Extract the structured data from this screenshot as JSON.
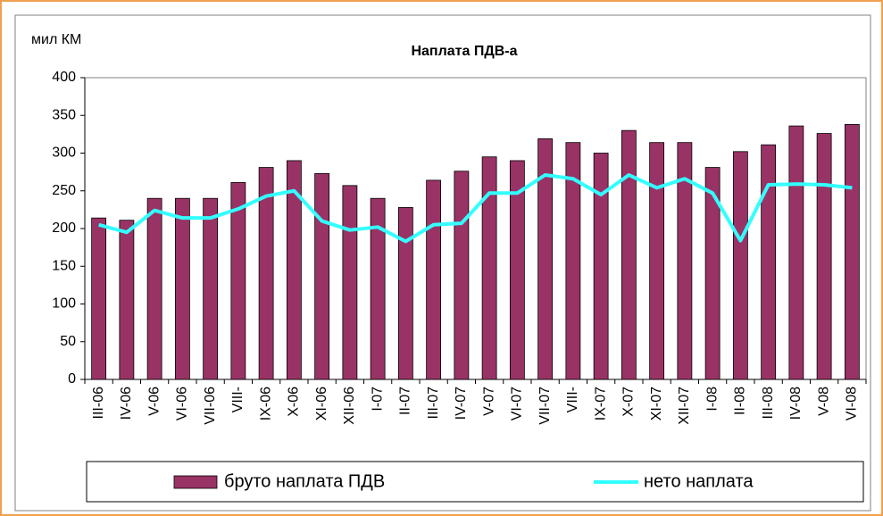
{
  "chart_data": {
    "type": "bar",
    "title": "Наплата ПДВ-а",
    "y_axis_label": "мил КМ",
    "categories": [
      "III-06",
      "IV-06",
      "V-06",
      "VI-06",
      "VII-06",
      "VIII-",
      "IX-06",
      "X-06",
      "XI-06",
      "XII-06",
      "I-07",
      "II-07",
      "III-07",
      "IV-07",
      "V-07",
      "VI-07",
      "VII-07",
      "VIII-",
      "IX-07",
      "X-07",
      "XI-07",
      "XII-07",
      "I-08",
      "II-08",
      "III-08",
      "IV-08",
      "V-08",
      "VI-08"
    ],
    "series": [
      {
        "name": "бруто наплата ПДВ",
        "type": "bar",
        "color": "#993366",
        "values": [
          214,
          211,
          240,
          240,
          240,
          261,
          281,
          290,
          273,
          257,
          240,
          228,
          264,
          276,
          295,
          290,
          319,
          314,
          300,
          330,
          314,
          314,
          281,
          302,
          311,
          336,
          326,
          338
        ]
      },
      {
        "name": "нето наплата",
        "type": "line",
        "color": "#33ffff",
        "values": [
          205,
          195,
          224,
          214,
          214,
          226,
          243,
          250,
          210,
          198,
          202,
          183,
          205,
          207,
          247,
          247,
          271,
          266,
          245,
          271,
          254,
          266,
          247,
          184,
          258,
          259,
          258,
          254
        ]
      }
    ],
    "ylim": [
      0,
      400
    ],
    "yticks": [
      0,
      50,
      100,
      150,
      200,
      250,
      300,
      350,
      400
    ],
    "legend": "bottom"
  }
}
